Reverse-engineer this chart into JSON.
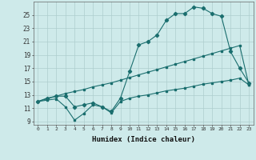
{
  "xlabel": "Humidex (Indice chaleur)",
  "x_ticks": [
    0,
    1,
    2,
    3,
    4,
    5,
    6,
    7,
    8,
    9,
    10,
    11,
    12,
    13,
    14,
    15,
    16,
    17,
    18,
    19,
    20,
    21,
    22,
    23
  ],
  "xlim": [
    -0.5,
    23.5
  ],
  "ylim": [
    8.5,
    27
  ],
  "yticks": [
    9,
    11,
    13,
    15,
    17,
    19,
    21,
    23,
    25
  ],
  "bg_color": "#ceeaea",
  "grid_color": "#aecece",
  "line_color": "#1a6e6e",
  "line1_x": [
    0,
    1,
    2,
    3,
    4,
    5,
    6,
    7,
    8,
    9,
    10,
    11,
    12,
    13,
    14,
    15,
    16,
    17,
    18,
    19,
    20,
    21,
    22,
    23
  ],
  "line1_y": [
    12,
    12.5,
    12.8,
    12.8,
    11.2,
    11.5,
    11.8,
    11.2,
    10.5,
    12.5,
    16.5,
    20.5,
    21.0,
    22.0,
    24.2,
    25.2,
    25.2,
    26.2,
    26.0,
    25.2,
    24.8,
    19.5,
    17.0,
    14.8
  ],
  "line2_x": [
    0,
    1,
    2,
    3,
    4,
    5,
    6,
    7,
    8,
    9,
    10,
    11,
    12,
    13,
    14,
    15,
    16,
    17,
    18,
    19,
    20,
    21,
    22,
    23
  ],
  "line2_y": [
    12,
    12.4,
    12.8,
    13.2,
    13.5,
    13.8,
    14.2,
    14.5,
    14.8,
    15.2,
    15.6,
    16.0,
    16.4,
    16.8,
    17.2,
    17.6,
    18.0,
    18.4,
    18.8,
    19.2,
    19.6,
    20.0,
    20.4,
    14.5
  ],
  "line3_x": [
    0,
    1,
    2,
    3,
    4,
    5,
    6,
    7,
    8,
    9,
    10,
    11,
    12,
    13,
    14,
    15,
    16,
    17,
    18,
    19,
    20,
    21,
    22,
    23
  ],
  "line3_y": [
    12,
    12.2,
    12.4,
    11.2,
    9.2,
    10.2,
    11.5,
    11.2,
    10.3,
    12.0,
    12.5,
    12.8,
    13.0,
    13.3,
    13.6,
    13.8,
    14.0,
    14.3,
    14.6,
    14.8,
    15.0,
    15.2,
    15.5,
    14.5
  ]
}
